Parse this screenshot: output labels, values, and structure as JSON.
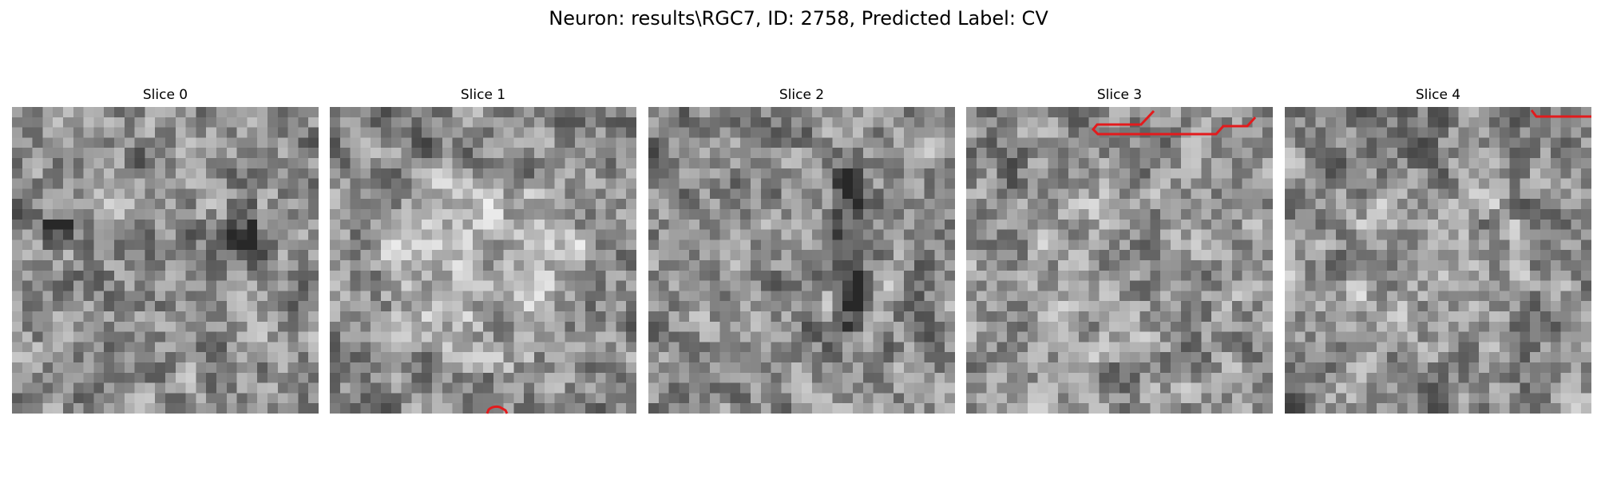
{
  "figure": {
    "suptitle": "Neuron: results\\RGC7, ID: 2758, Predicted Label: CV",
    "colormap": "gray",
    "contour_color": "#e31a1c",
    "grid": 30
  },
  "slices": [
    {
      "title": "Slice 0",
      "seed": 11,
      "contour_icon": ""
    },
    {
      "title": "Slice 1",
      "seed": 23,
      "contour_icon": "red-arc-contour"
    },
    {
      "title": "Slice 2",
      "seed": 37,
      "contour_icon": ""
    },
    {
      "title": "Slice 3",
      "seed": 41,
      "contour_icon": "red-step-contour"
    },
    {
      "title": "Slice 4",
      "seed": 53,
      "contour_icon": "red-corner-contour"
    }
  ]
}
